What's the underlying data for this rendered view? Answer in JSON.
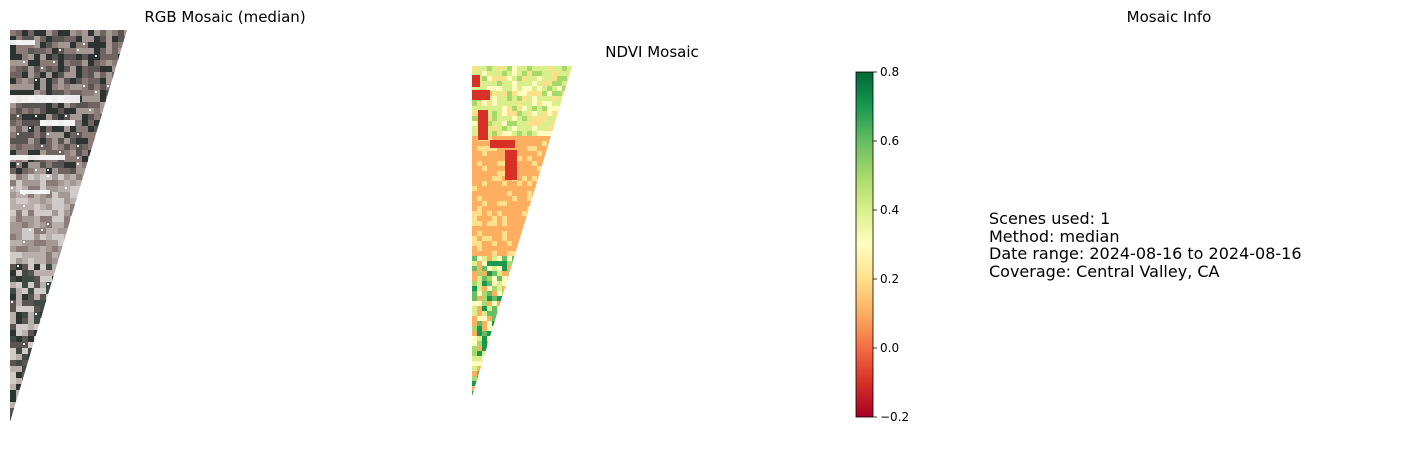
{
  "panels": {
    "rgb": {
      "title": "RGB Mosaic (median)"
    },
    "ndvi": {
      "title": "NDVI Mosaic"
    },
    "info": {
      "title": "Mosaic Info"
    }
  },
  "info_lines": [
    "Scenes used: 1",
    "Method: median",
    "Date range: 2024-08-16 to 2024-08-16",
    "Coverage: Central Valley, CA"
  ],
  "colors": {
    "cmap": [
      "#a50026",
      "#d73027",
      "#f46d43",
      "#fdae61",
      "#fee08b",
      "#ffffbf",
      "#d9ef8b",
      "#a6d96a",
      "#66bd63",
      "#1a9850",
      "#006837"
    ],
    "rgb_tones": [
      "#8a7a78",
      "#6f6462",
      "#a39894",
      "#3f4a45",
      "#5a5553",
      "#b9b0ad",
      "#2c3330",
      "#d0cac8"
    ],
    "ndvi_base": "#fdae61"
  },
  "chart_data": [
    {
      "type": "heatmap",
      "title": "RGB Mosaic (median)",
      "description_visible": "satellite true-color swath",
      "axes": "off"
    },
    {
      "type": "heatmap",
      "title": "NDVI Mosaic",
      "axes": "off",
      "colorbar": {
        "cmap": "RdYlGn",
        "vmin": -0.2,
        "vmax": 0.8,
        "ticks": [
          -0.2,
          0.0,
          0.2,
          0.4,
          0.6,
          0.8
        ],
        "tick_labels": [
          "−0.2",
          "0.0",
          "0.2",
          "0.4",
          "0.6",
          "0.8"
        ]
      }
    }
  ]
}
